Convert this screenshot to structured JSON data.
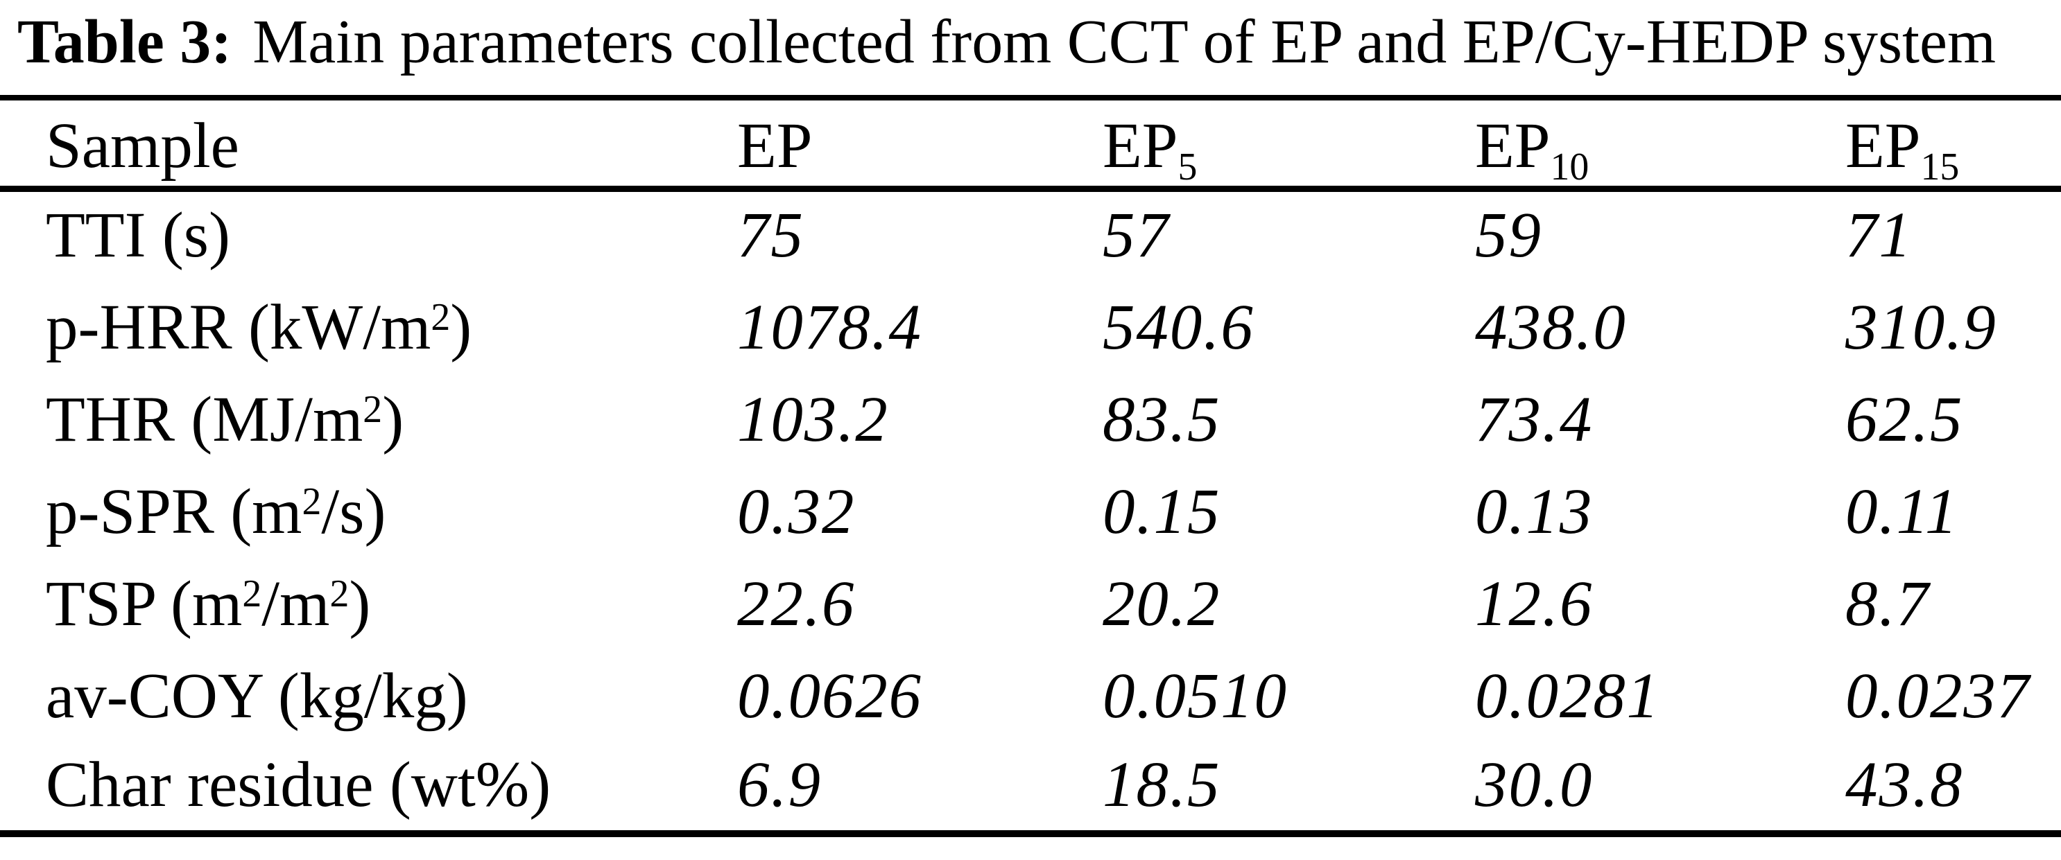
{
  "page": {
    "background_color": "#ffffff",
    "text_color": "#000000"
  },
  "title": {
    "label": "Table 3:",
    "text": "Main parameters collected from CCT of EP and EP/Cy-HEDP system"
  },
  "table": {
    "header": [
      {
        "segments": [
          {
            "t": "Sample"
          }
        ]
      },
      {
        "segments": [
          {
            "t": "EP"
          }
        ]
      },
      {
        "segments": [
          {
            "t": "EP"
          },
          {
            "sub": "5"
          }
        ]
      },
      {
        "segments": [
          {
            "t": "EP"
          },
          {
            "sub": "10"
          }
        ]
      },
      {
        "segments": [
          {
            "t": "EP"
          },
          {
            "sub": "15"
          }
        ]
      }
    ],
    "rows": [
      {
        "label": {
          "segments": [
            {
              "t": "TTI (s)"
            }
          ]
        },
        "values": [
          "75",
          "57",
          "59",
          "71"
        ]
      },
      {
        "label": {
          "segments": [
            {
              "t": "p-HRR (kW/m"
            },
            {
              "sup": "2"
            },
            {
              "t": ")"
            }
          ]
        },
        "values": [
          "1078.4",
          "540.6",
          "438.0",
          "310.9"
        ]
      },
      {
        "label": {
          "segments": [
            {
              "t": "THR (MJ/m"
            },
            {
              "sup": "2"
            },
            {
              "t": ")"
            }
          ]
        },
        "values": [
          "103.2",
          "83.5",
          "73.4",
          "62.5"
        ]
      },
      {
        "label": {
          "segments": [
            {
              "t": "p-SPR (m"
            },
            {
              "sup": "2"
            },
            {
              "t": "/s)"
            }
          ]
        },
        "values": [
          "0.32",
          "0.15",
          "0.13",
          "0.11"
        ]
      },
      {
        "label": {
          "segments": [
            {
              "t": "TSP (m"
            },
            {
              "sup": "2"
            },
            {
              "t": "/m"
            },
            {
              "sup": "2"
            },
            {
              "t": ")"
            }
          ]
        },
        "values": [
          "22.6",
          "20.2",
          "12.6",
          "8.7"
        ]
      },
      {
        "label": {
          "segments": [
            {
              "t": "av-COY (kg/kg)"
            }
          ]
        },
        "values": [
          "0.0626",
          "0.0510",
          "0.0281",
          "0.0237"
        ]
      },
      {
        "label": {
          "segments": [
            {
              "t": "Char residue (wt%)"
            }
          ]
        },
        "values": [
          "6.9",
          "18.5",
          "30.0",
          "43.8"
        ]
      }
    ]
  }
}
